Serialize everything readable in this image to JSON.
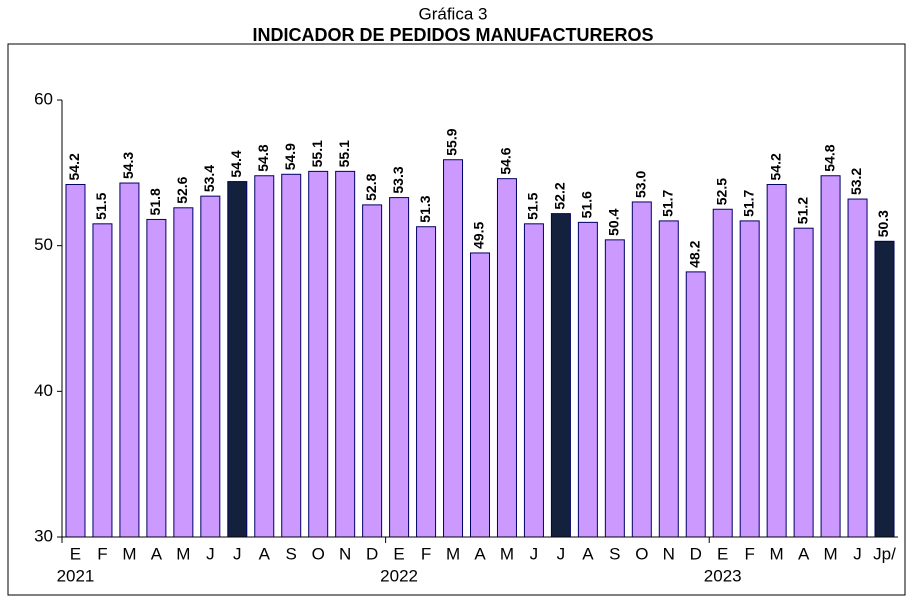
{
  "chart_data": {
    "type": "bar",
    "title": "Gráfica 3",
    "subtitle": "INDICADOR DE PEDIDOS MANUFACTUREROS",
    "groups": [
      {
        "label": "2021",
        "categories": [
          "E",
          "F",
          "M",
          "A",
          "M",
          "J",
          "J",
          "A",
          "S",
          "O",
          "N",
          "D"
        ]
      },
      {
        "label": "2022",
        "categories": [
          "E",
          "F",
          "M",
          "A",
          "M",
          "J",
          "J",
          "A",
          "S",
          "O",
          "N",
          "D"
        ]
      },
      {
        "label": "2023",
        "categories": [
          "E",
          "F",
          "M",
          "A",
          "M",
          "J",
          "Jp/"
        ]
      }
    ],
    "values": [
      54.2,
      51.5,
      54.3,
      51.8,
      52.6,
      53.4,
      54.4,
      54.8,
      54.9,
      55.1,
      55.1,
      52.8,
      53.3,
      51.3,
      55.9,
      49.5,
      54.6,
      51.5,
      52.2,
      51.6,
      50.4,
      53.0,
      51.7,
      48.2,
      52.5,
      51.7,
      54.2,
      51.2,
      54.8,
      53.2,
      50.3
    ],
    "value_labels": [
      "54.2",
      "51.5",
      "54.3",
      "51.8",
      "52.6",
      "53.4",
      "54.4",
      "54.8",
      "54.9",
      "55.1",
      "55.1",
      "52.8",
      "53.3",
      "51.3",
      "55.9",
      "49.5",
      "54.6",
      "51.5",
      "52.2",
      "51.6",
      "50.4",
      "53.0",
      "51.7",
      "48.2",
      "52.5",
      "51.7",
      "54.2",
      "51.2",
      "54.8",
      "53.2",
      "50.3"
    ],
    "colors": [
      "#cc99ff",
      "#cc99ff",
      "#cc99ff",
      "#cc99ff",
      "#cc99ff",
      "#cc99ff",
      "#14213d",
      "#cc99ff",
      "#cc99ff",
      "#cc99ff",
      "#cc99ff",
      "#cc99ff",
      "#cc99ff",
      "#cc99ff",
      "#cc99ff",
      "#cc99ff",
      "#cc99ff",
      "#cc99ff",
      "#14213d",
      "#cc99ff",
      "#cc99ff",
      "#cc99ff",
      "#cc99ff",
      "#cc99ff",
      "#cc99ff",
      "#cc99ff",
      "#cc99ff",
      "#cc99ff",
      "#cc99ff",
      "#cc99ff",
      "#14213d"
    ],
    "ylim": [
      30,
      60
    ],
    "yticks": [
      30,
      40,
      50,
      60
    ],
    "grid": false
  }
}
